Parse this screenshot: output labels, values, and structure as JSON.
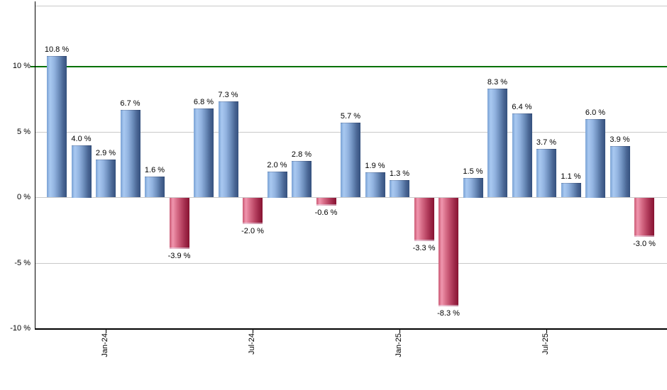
{
  "chart_data": {
    "type": "bar",
    "title": "",
    "xlabel": "",
    "ylabel": "",
    "values": [
      10.8,
      4.0,
      2.9,
      6.7,
      1.6,
      -3.9,
      6.8,
      7.3,
      -2.0,
      2.0,
      2.8,
      -0.6,
      5.7,
      1.9,
      1.3,
      -3.3,
      -8.3,
      1.5,
      8.3,
      6.4,
      3.7,
      1.1,
      6.0,
      3.9,
      -3.0
    ],
    "value_label_suffix": " %",
    "x_ticks": [
      {
        "label": "Jan-24",
        "bar_index": 2
      },
      {
        "label": "Jul-24",
        "bar_index": 8
      },
      {
        "label": "Jan-25",
        "bar_index": 14
      },
      {
        "label": "Jul-25",
        "bar_index": 20
      }
    ],
    "y_ticks": [
      {
        "label": "10 %",
        "value": 10
      },
      {
        "label": "5 %",
        "value": 5
      },
      {
        "label": "0 %",
        "value": 0
      },
      {
        "label": "-5 %",
        "value": -5
      },
      {
        "label": "-10 %",
        "value": -10
      }
    ],
    "ylim": [
      -10,
      14.6
    ],
    "grid_on": true,
    "grid_values": [
      5,
      0,
      -5
    ],
    "benchmark_line": {
      "value": 10,
      "color": "#007100"
    },
    "legend_position": "none",
    "colors": {
      "positive_bar_light": "#a9c9f1",
      "positive_bar_dark": "#35517e",
      "negative_bar_light": "#f096ae",
      "negative_bar_dark": "#871332",
      "gridline": "#c9c9c9",
      "axis": "#000000",
      "background": "#ffffff",
      "label_text": "#000000"
    }
  }
}
